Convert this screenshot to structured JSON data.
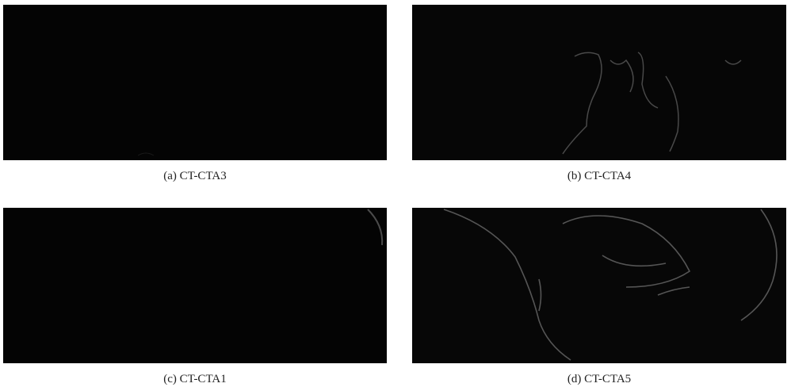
{
  "figure": {
    "panels": [
      {
        "caption": "(a) CT-CTA3"
      },
      {
        "caption": "(b) CT-CTA4"
      },
      {
        "caption": "(c) CT-CTA1"
      },
      {
        "caption": "(d) CT-CTA5"
      }
    ]
  }
}
